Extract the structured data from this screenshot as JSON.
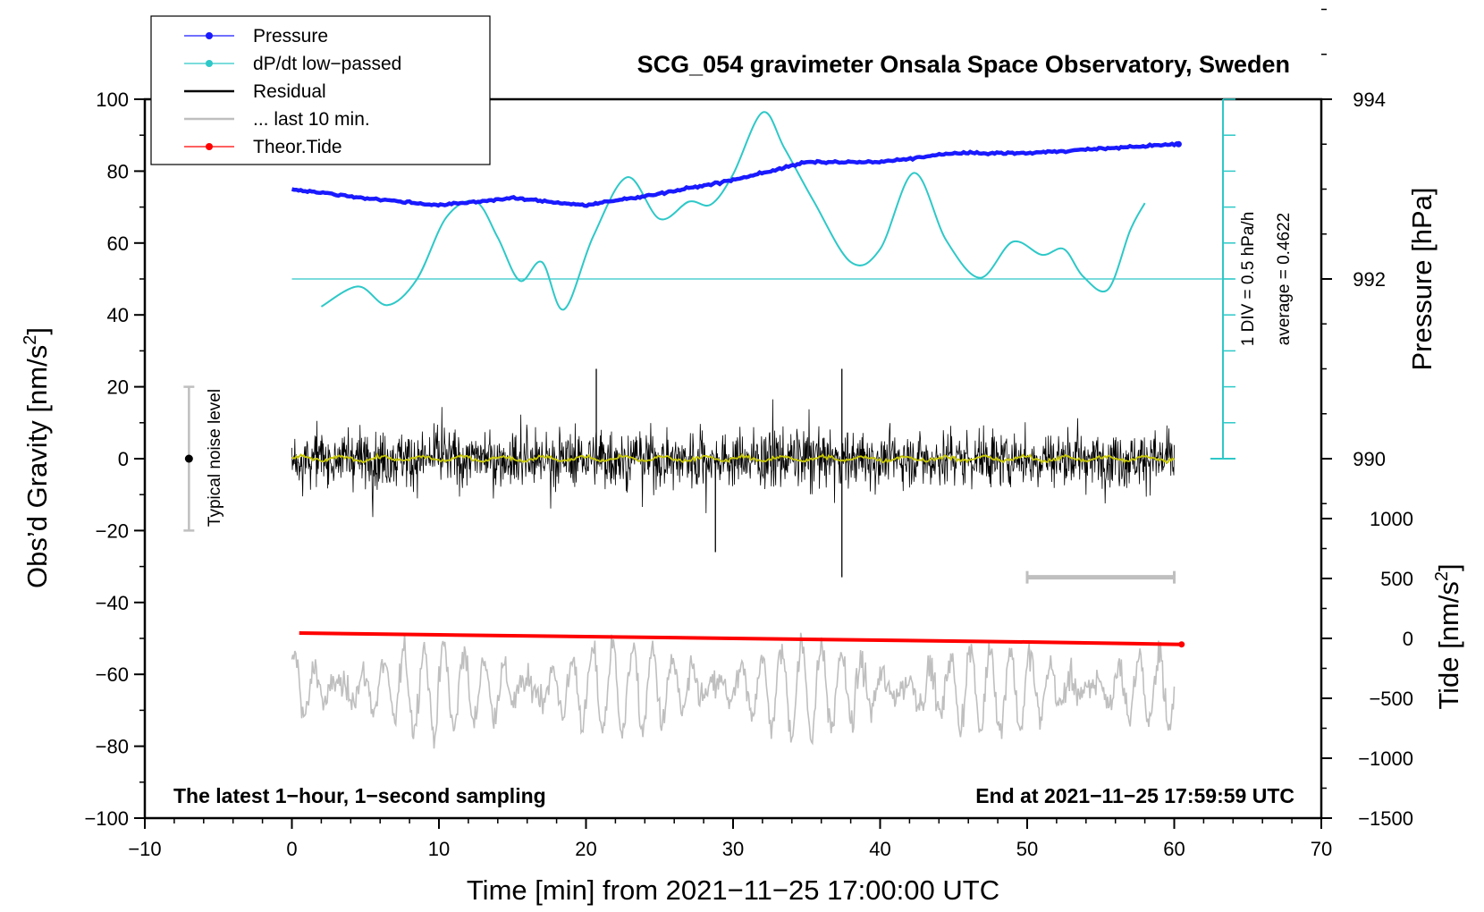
{
  "chart_data": {
    "type": "line",
    "title": "SCG_054 gravimeter Onsala Space Observatory, Sweden",
    "xlabel": "Time [min] from 2021−11−25 17:00:00 UTC",
    "ylabel_left": "Obs’d Gravity [nm/s",
    "ylabel_left_sup": "2",
    "ylabel_left_end": "]",
    "ylabel_right_pressure": "Pressure [hPa]",
    "ylabel_right_tide": "Tide [nm/s",
    "ylabel_right_tide_sup": "2",
    "ylabel_right_tide_end": "]",
    "xlim": [
      -10,
      70
    ],
    "ylim": [
      -100,
      100
    ],
    "x_ticks": [
      -10,
      0,
      10,
      20,
      30,
      40,
      50,
      60,
      70
    ],
    "x_tick_labels": [
      "−10",
      "0",
      "10",
      "20",
      "30",
      "40",
      "50",
      "60",
      "70"
    ],
    "y_ticks": [
      100,
      80,
      60,
      40,
      20,
      0,
      -20,
      -40,
      -60,
      -80,
      -100
    ],
    "y_tick_labels": [
      "100",
      "80",
      "60",
      "40",
      "20",
      "0",
      "−20",
      "−40",
      "−60",
      "−80",
      "−100"
    ],
    "pressure_axis": {
      "ticks": [
        994,
        992,
        990
      ],
      "tick_labels": [
        "994",
        "992",
        "990"
      ],
      "ref_value": 992,
      "ref_gravity": 50,
      "gravity_per_hPa": 25
    },
    "tide_axis": {
      "ticks": [
        1000,
        500,
        0,
        -500,
        -1000,
        -1500
      ],
      "tick_labels": [
        "1000",
        "500",
        "0",
        "−500",
        "−1000",
        "−1500"
      ],
      "gravity_per_unit": 0.03333,
      "zero_gravity": -50
    },
    "legend": [
      {
        "label": "Pressure",
        "color": "#1a1aff",
        "marker": true
      },
      {
        "label": "dP/dt low−passed",
        "color": "#2ec8c8",
        "marker": true
      },
      {
        "label": "Residual",
        "color": "#000000",
        "marker": false
      },
      {
        "label": "... last 10 min.",
        "color": "#bfbfbf",
        "marker": false
      },
      {
        "label": "Theor.Tide",
        "color": "#ff0000",
        "marker": true
      }
    ],
    "annotations": {
      "left_bottom": "The latest 1−hour, 1−second sampling",
      "right_bottom": "End at 2021−11−25 17:59:59 UTC",
      "noise_label": "Typical noise level",
      "div_label": "1 DIV = 0.5 hPa/h",
      "average_label": "average = 0.4622"
    },
    "series": [
      {
        "name": "Pressure",
        "color": "#1a1aff",
        "unit": "hPa",
        "x": [
          0,
          5,
          10,
          15,
          20,
          25,
          30,
          35,
          40,
          45,
          50,
          55,
          60.3
        ],
        "values": [
          993.0,
          992.9,
          992.82,
          992.9,
          992.82,
          992.95,
          993.1,
          993.3,
          993.3,
          993.4,
          993.4,
          993.45,
          993.5
        ]
      },
      {
        "name": "dP/dt low-passed",
        "color": "#2ec8c8",
        "unit": "hPa/h",
        "x": [
          2,
          4.5,
          6.5,
          8.5,
          10.5,
          12.5,
          14,
          15.5,
          17,
          18.5,
          20.5,
          22.8,
          25,
          27,
          28.5,
          30,
          32,
          33.5,
          35.5,
          38,
          40,
          42.3,
          44.5,
          46.8,
          49,
          51,
          52.5,
          53.8,
          55.5,
          57,
          58
        ],
        "values": [
          0.27,
          0.41,
          0.28,
          0.46,
          0.89,
          1.0,
          0.75,
          0.45,
          0.58,
          0.25,
          0.76,
          1.17,
          0.88,
          1.0,
          0.98,
          1.19,
          1.62,
          1.37,
          1.0,
          0.58,
          0.67,
          1.2,
          0.73,
          0.47,
          0.72,
          0.63,
          0.67,
          0.48,
          0.39,
          0.8,
          0.99
        ]
      },
      {
        "name": "Residual",
        "color": "#000000",
        "unit": "nm/s2",
        "x_range": [
          0,
          60
        ],
        "samples": 3600,
        "typical_amplitude": 10,
        "notable_spikes": [
          {
            "x": 37.4,
            "value": -33
          },
          {
            "x": 37.4,
            "value": 25
          },
          {
            "x": 28.8,
            "value": -26
          },
          {
            "x": 20.7,
            "value": 25
          }
        ]
      },
      {
        "name": "Residual running mean",
        "color": "#c8c800",
        "unit": "nm/s2",
        "x_range": [
          0,
          60
        ],
        "typical_value": 0
      },
      {
        "name": "last 10 min.",
        "color": "#bfbfbf",
        "unit": "nm/s2",
        "x_range": [
          0,
          60
        ],
        "center_value": -64,
        "typical_amplitude": 9
      },
      {
        "name": "Theor.Tide",
        "color": "#ff0000",
        "unit": "nm/s2",
        "x": [
          0.5,
          10,
          20,
          30,
          40,
          50,
          60.5
        ],
        "values": [
          45,
          30,
          15,
          0,
          -15,
          -30,
          -50
        ]
      }
    ],
    "noise_bar": {
      "x": -7,
      "center": 0,
      "low": -20,
      "high": 20
    },
    "window_bar": {
      "x_start": 50,
      "x_end": 60,
      "y": -33
    }
  }
}
